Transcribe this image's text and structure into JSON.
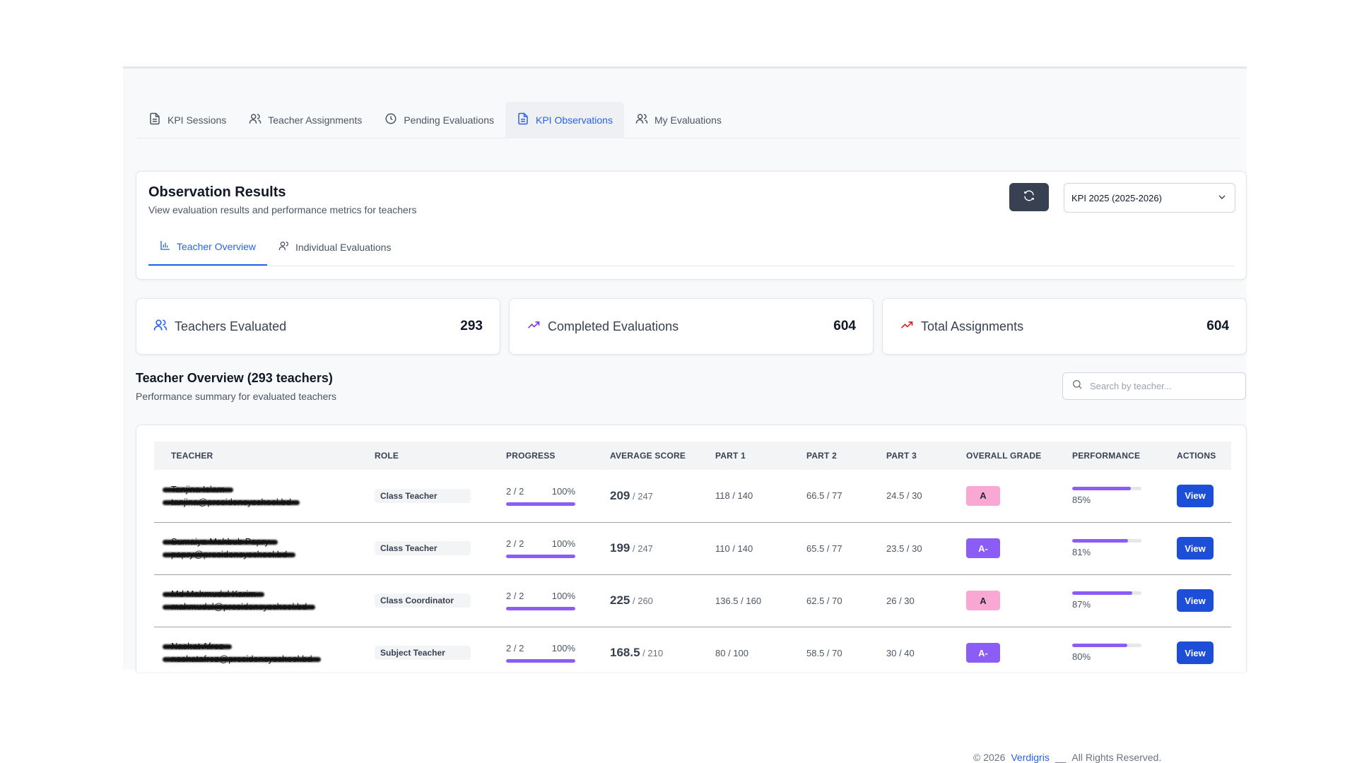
{
  "nav": {
    "tabs": [
      {
        "label": "KPI Sessions",
        "icon": "document-icon"
      },
      {
        "label": "Teacher Assignments",
        "icon": "users-icon"
      },
      {
        "label": "Pending Evaluations",
        "icon": "clock-icon"
      },
      {
        "label": "KPI Observations",
        "icon": "document-icon",
        "active": true
      },
      {
        "label": "My Evaluations",
        "icon": "users-icon"
      }
    ]
  },
  "observation": {
    "title": "Observation Results",
    "subtitle": "View evaluation results and performance metrics for teachers",
    "session_select": "KPI 2025 (2025-2026)",
    "sub_tabs": [
      "Teacher Overview",
      "Individual Evaluations"
    ]
  },
  "stats": [
    {
      "label": "Teachers Evaluated",
      "value": "293",
      "icon": "users-icon",
      "color": "#2563eb"
    },
    {
      "label": "Completed Evaluations",
      "value": "604",
      "icon": "trending-up-icon",
      "color": "#7c3aed"
    },
    {
      "label": "Total Assignments",
      "value": "604",
      "icon": "trending-up-icon",
      "color": "#dc2626"
    }
  ],
  "overview": {
    "title": "Teacher Overview (293 teachers)",
    "subtitle": "Performance summary for evaluated teachers",
    "search_placeholder": "Search by teacher..."
  },
  "table": {
    "headers": [
      "TEACHER",
      "ROLE",
      "PROGRESS",
      "AVERAGE SCORE",
      "PART 1",
      "PART 2",
      "PART 3",
      "OVERALL GRADE",
      "PERFORMANCE",
      "ACTIONS"
    ],
    "rows": [
      {
        "name": "Tanjina Islam",
        "email": "tanjina@presidencyschool.bd",
        "role": "Class Teacher",
        "progress": "2 / 2",
        "progress_pct": "100%",
        "avg": "209",
        "avg_max": "/ 247",
        "part1": "118 / 140",
        "part2": "66.5 / 77",
        "part3": "24.5 / 30",
        "grade": "A",
        "performance": "85%",
        "action": "View"
      },
      {
        "name": "Sumaiya Mahbub Papry",
        "email": "papry@presidencyschool.bd",
        "role": "Class Teacher",
        "progress": "2 / 2",
        "progress_pct": "100%",
        "avg": "199",
        "avg_max": "/ 247",
        "part1": "110 / 140",
        "part2": "65.5 / 77",
        "part3": "23.5 / 30",
        "grade": "A-",
        "performance": "81%",
        "action": "View"
      },
      {
        "name": "Md Mahmudul Karim",
        "email": "mahmudul@presidencyschool.bd",
        "role": "Class Coordinator",
        "progress": "2 / 2",
        "progress_pct": "100%",
        "avg": "225",
        "avg_max": "/ 260",
        "part1": "136.5 / 160",
        "part2": "62.5 / 70",
        "part3": "26 / 30",
        "grade": "A",
        "performance": "87%",
        "action": "View"
      },
      {
        "name": "Nashat Afroz",
        "email": "nashatafroz@presidencyschool.bd",
        "role": "Subject Teacher",
        "progress": "2 / 2",
        "progress_pct": "100%",
        "avg": "168.5",
        "avg_max": "/ 210",
        "part1": "80 / 100",
        "part2": "58.5 / 70",
        "part3": "30 / 40",
        "grade": "A-",
        "performance": "80%",
        "action": "View"
      }
    ]
  },
  "grade_colors": {
    "A": {
      "bg": "#f9a8d4",
      "fg": "#1f2937"
    },
    "A-": {
      "bg": "#8b5cf6",
      "fg": "#ffffff"
    }
  },
  "footer": {
    "copyright": "© 2026",
    "brand": "Verdigris",
    "separator": "__",
    "rights": "All Rights Reserved."
  }
}
